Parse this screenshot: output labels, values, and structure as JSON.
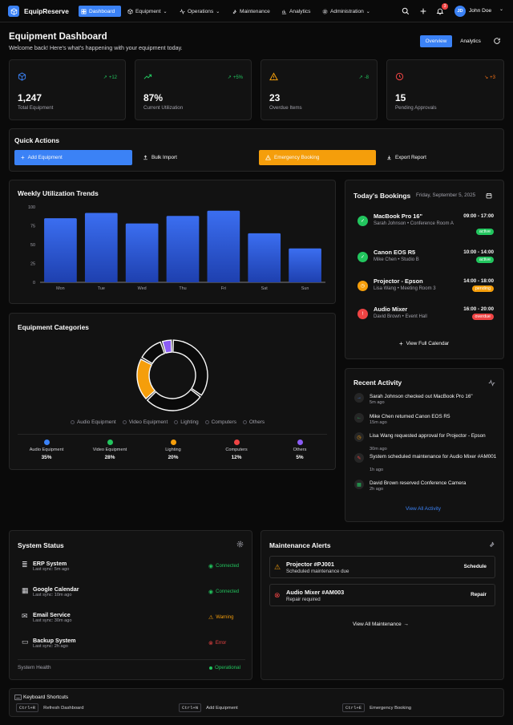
{
  "app": {
    "name": "EquipReserve"
  },
  "nav": {
    "items": [
      "Dashboard",
      "Equipment",
      "Operations",
      "Maintenance",
      "Analytics",
      "Administration"
    ],
    "notifications": "3",
    "user_initials": "JD",
    "user_name": "John Doe"
  },
  "header": {
    "title": "Equipment Dashboard",
    "subtitle": "Welcome back! Here's what's happening with your equipment today.",
    "tab_overview": "Overview",
    "tab_analytics": "Analytics"
  },
  "stats": [
    {
      "value": "1,247",
      "label": "Total Equipment",
      "trend": "+12",
      "color": "#3b82f6",
      "trend_color": "#22c55e"
    },
    {
      "value": "87%",
      "label": "Current Utilization",
      "trend": "+5%",
      "color": "#22c55e",
      "trend_color": "#22c55e"
    },
    {
      "value": "23",
      "label": "Overdue Items",
      "trend": "-8",
      "color": "#f59e0b",
      "trend_color": "#22c55e"
    },
    {
      "value": "15",
      "label": "Pending Approvals",
      "trend": "+3",
      "color": "#ef4444",
      "trend_color": "#f97316"
    }
  ],
  "quick_actions": {
    "title": "Quick Actions",
    "add": "Add Equipment",
    "bulk": "Bulk Import",
    "emergency": "Emergency Booking",
    "export": "Export Report"
  },
  "chart_data": [
    {
      "type": "bar",
      "title": "Weekly Utilization Trends",
      "categories": [
        "Mon",
        "Tue",
        "Wed",
        "Thu",
        "Fri",
        "Sat",
        "Sun"
      ],
      "values": [
        85,
        92,
        78,
        88,
        95,
        65,
        45
      ],
      "ylim": [
        0,
        100
      ],
      "yticks": [
        0,
        25,
        50,
        75,
        100
      ],
      "xlabel": "",
      "ylabel": "",
      "bar_color": "#2f5bd6"
    },
    {
      "type": "pie",
      "title": "Equipment Categories",
      "categories": [
        "Audio Equipment",
        "Video Equipment",
        "Lighting",
        "Computers",
        "Others"
      ],
      "values": [
        35,
        28,
        20,
        12,
        5
      ],
      "colors": [
        "#3b82f6",
        "#22c55e",
        "#f59e0b",
        "#ef4444",
        "#8b5cf6"
      ],
      "legend_position": "bottom"
    }
  ],
  "categories_summary": [
    {
      "name": "Audio Equipment",
      "pct": "35%",
      "color": "#3b82f6"
    },
    {
      "name": "Video Equipment",
      "pct": "28%",
      "color": "#22c55e"
    },
    {
      "name": "Lighting",
      "pct": "20%",
      "color": "#f59e0b"
    },
    {
      "name": "Computers",
      "pct": "12%",
      "color": "#ef4444"
    },
    {
      "name": "Others",
      "pct": "5%",
      "color": "#8b5cf6"
    }
  ],
  "bookings": {
    "title": "Today's Bookings",
    "date": "Friday, September 5, 2025",
    "items": [
      {
        "name": "MacBook Pro 16\"",
        "detail": "Sarah Johnson • Conference Room A",
        "time": "09:00 - 17:00",
        "status": "active",
        "color": "#22c55e"
      },
      {
        "name": "Canon EOS R5",
        "detail": "Mike Chen • Studio B",
        "time": "10:00 - 14:00",
        "status": "active",
        "color": "#22c55e"
      },
      {
        "name": "Projector - Epson",
        "detail": "Lisa Wang • Meeting Room 3",
        "time": "14:00 - 18:00",
        "status": "pending",
        "color": "#f59e0b"
      },
      {
        "name": "Audio Mixer",
        "detail": "David Brown • Event Hall",
        "time": "16:00 - 20:00",
        "status": "overdue",
        "color": "#ef4444"
      }
    ],
    "view_calendar": "View Full Calendar"
  },
  "activity": {
    "title": "Recent Activity",
    "items": [
      {
        "text": "Sarah Johnson checked out MacBook Pro 16\"",
        "time": "5m ago",
        "color": "#3b82f6"
      },
      {
        "text": "Mike Chen returned Canon EOS R5",
        "time": "15m ago",
        "color": "#22c55e"
      },
      {
        "text": "Lisa Wang requested approval for Projector - Epson",
        "time": "30m ago",
        "color": "#f59e0b"
      },
      {
        "text": "System scheduled maintenance for Audio Mixer #AM001",
        "time": "1h ago",
        "color": "#ef4444"
      },
      {
        "text": "David Brown reserved Conference Camera",
        "time": "2h ago",
        "color": "#22c55e"
      }
    ],
    "view_all": "View All Activity"
  },
  "system_status": {
    "title": "System Status",
    "items": [
      {
        "name": "ERP System",
        "sync": "Last sync: 5m ago",
        "status": "Connected",
        "color": "#22c55e"
      },
      {
        "name": "Google Calendar",
        "sync": "Last sync: 10m ago",
        "status": "Connected",
        "color": "#22c55e"
      },
      {
        "name": "Email Service",
        "sync": "Last sync: 30m ago",
        "status": "Warning",
        "color": "#f59e0b"
      },
      {
        "name": "Backup System",
        "sync": "Last sync: 2h ago",
        "status": "Error",
        "color": "#ef4444"
      }
    ],
    "health_label": "System Health",
    "health_value": "Operational"
  },
  "maintenance": {
    "title": "Maintenance Alerts",
    "items": [
      {
        "name": "Projector #PJ001",
        "desc": "Scheduled maintenance due",
        "action": "Schedule",
        "color": "#f59e0b"
      },
      {
        "name": "Audio Mixer #AM003",
        "desc": "Repair required",
        "action": "Repair",
        "color": "#ef4444"
      }
    ],
    "view_all": "View All Maintenance"
  },
  "shortcuts": {
    "title": "Keyboard Shortcuts",
    "items": [
      {
        "keys": "Ctrl+R",
        "label": "Refresh Dashboard"
      },
      {
        "keys": "Ctrl+N",
        "label": "Add Equipment"
      },
      {
        "keys": "Ctrl+E",
        "label": "Emergency Booking"
      }
    ]
  }
}
